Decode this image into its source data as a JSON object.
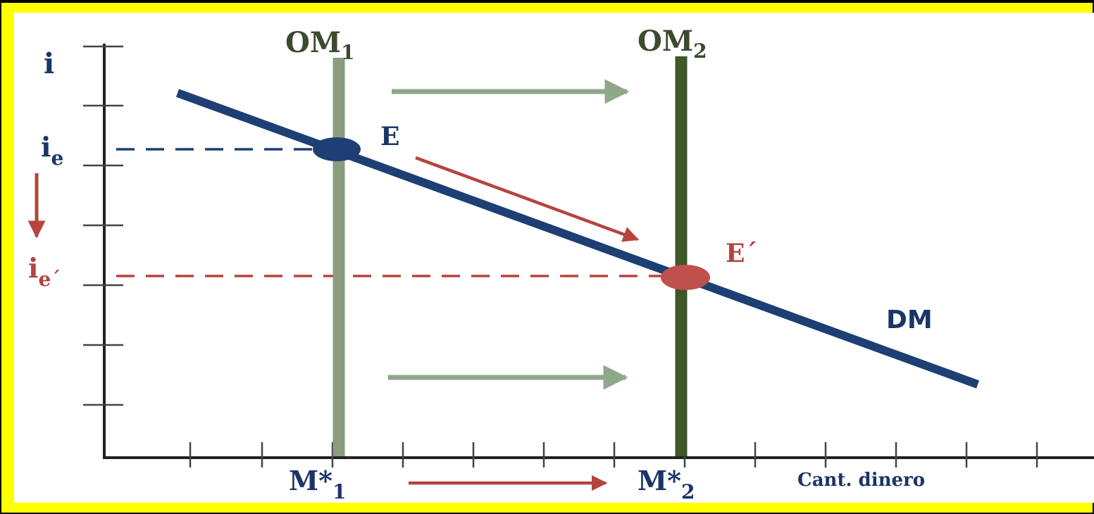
{
  "diagram": {
    "y_axis_label": "i",
    "x_axis_label": "Cant. dinero",
    "supply_1": {
      "base": "OM",
      "sub": "1"
    },
    "supply_2": {
      "base": "OM",
      "sub": "2"
    },
    "demand_label": "DM",
    "eq_1": "E",
    "eq_2": "E´",
    "rate_1": {
      "base": "i",
      "sub": "e"
    },
    "rate_2": {
      "base": "i",
      "sub": "e´"
    },
    "qty_1": {
      "base": "M*",
      "sub": "1"
    },
    "qty_2": {
      "base": "M*",
      "sub": "2"
    }
  },
  "colors": {
    "frame": "#ffff00",
    "outer": "#000000",
    "panel": "#ffffff",
    "axis": "#222222",
    "demand": "#1d3f73",
    "supply_1": "#8a9d7f",
    "supply_2": "#3e5628",
    "equilibrium_1": "#1d3f73",
    "equilibrium_2": "#c0504d",
    "arrow_shift": "#8fa88a",
    "arrow_red": "#b5443f",
    "label_text": "#1a3566",
    "label_red": "#b5443f",
    "label_green": "#3c4a2e"
  }
}
